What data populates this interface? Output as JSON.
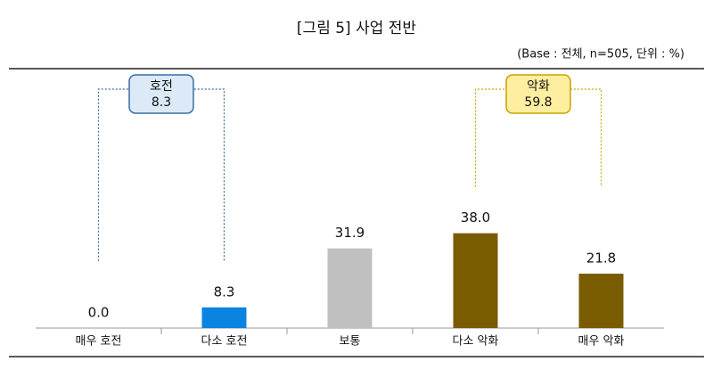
{
  "chart_data": {
    "type": "bar",
    "title": "[그림 5] 사업 전반",
    "subtitle": "(Base : 전체, n=505, 단위 : %)",
    "categories": [
      "매우 호전",
      "다소 호전",
      "보통",
      "다소 악화",
      "매우 악화"
    ],
    "values": [
      0.0,
      8.3,
      31.9,
      38.0,
      21.8
    ],
    "value_labels": [
      "0.0",
      "8.3",
      "31.9",
      "38.0",
      "21.8"
    ],
    "colors": [
      "#0a84e0",
      "#0a84e0",
      "#c0c0c0",
      "#7a5c00",
      "#7a5c00"
    ],
    "annotations": [
      {
        "label": "호전",
        "value": 8.3,
        "color": "#dce9f7",
        "border": "#3a6ea5"
      },
      {
        "label": "악화",
        "value": 59.8,
        "color": "#fdeea0",
        "border": "#c9a400"
      }
    ]
  }
}
